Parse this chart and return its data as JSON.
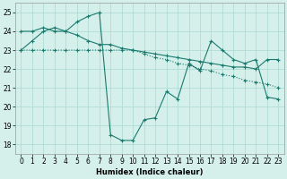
{
  "xlabel": "Humidex (Indice chaleur)",
  "background_color": "#d5f0eb",
  "grid_color": "#aad8d2",
  "line_color": "#1a7a6e",
  "xlim": [
    -0.5,
    23.5
  ],
  "ylim": [
    17.5,
    25.5
  ],
  "yticks": [
    18,
    19,
    20,
    21,
    22,
    23,
    24,
    25
  ],
  "xticks": [
    0,
    1,
    2,
    3,
    4,
    5,
    6,
    7,
    8,
    9,
    10,
    11,
    12,
    13,
    14,
    15,
    16,
    17,
    18,
    19,
    20,
    21,
    22,
    23
  ],
  "series1_y": [
    23.0,
    23.0,
    23.0,
    23.0,
    23.0,
    23.0,
    23.0,
    23.0,
    23.0,
    23.0,
    23.0,
    22.8,
    22.6,
    22.5,
    22.3,
    22.2,
    22.0,
    21.9,
    21.7,
    21.6,
    21.4,
    21.3,
    21.2,
    21.0
  ],
  "series2_y": [
    23.0,
    23.5,
    24.0,
    24.2,
    24.0,
    24.5,
    24.8,
    25.0,
    18.5,
    18.2,
    18.2,
    19.3,
    19.4,
    20.8,
    20.4,
    22.3,
    21.9,
    23.5,
    23.0,
    22.5,
    22.3,
    22.5,
    20.5,
    20.4
  ],
  "series3_y": [
    24.0,
    24.0,
    24.2,
    24.0,
    24.0,
    23.8,
    23.5,
    23.3,
    23.3,
    23.1,
    23.0,
    22.9,
    22.8,
    22.7,
    22.6,
    22.5,
    22.4,
    22.3,
    22.2,
    22.1,
    22.1,
    22.0,
    22.5,
    22.5
  ]
}
